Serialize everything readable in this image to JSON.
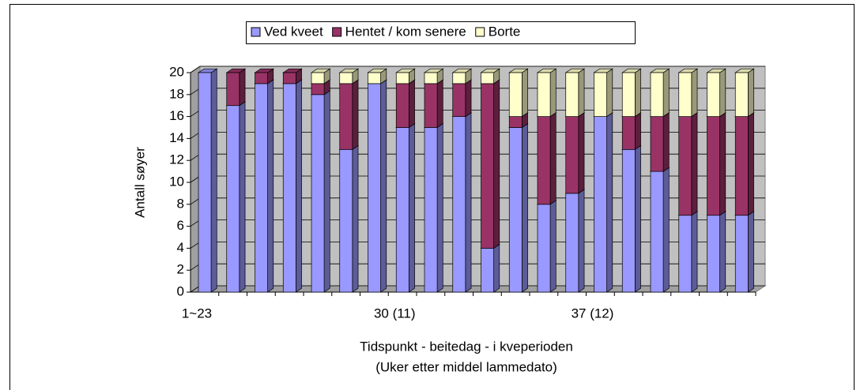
{
  "chart_data": {
    "type": "stacked_bar_3d",
    "categories": [
      "1~23",
      null,
      null,
      null,
      null,
      null,
      null,
      "30 (11)",
      null,
      null,
      null,
      null,
      null,
      null,
      "37 (12)",
      null,
      null,
      null,
      null,
      null
    ],
    "series": [
      {
        "name": "Ved kveet",
        "color": "#9999ff",
        "values": [
          20,
          17,
          19,
          19,
          18,
          13,
          19,
          15,
          15,
          16,
          4,
          15,
          8,
          9,
          16,
          13,
          11,
          7,
          7,
          7
        ]
      },
      {
        "name": "Hentet / kom senere",
        "color": "#993366",
        "values": [
          0,
          3,
          1,
          1,
          1,
          6,
          0,
          4,
          4,
          3,
          15,
          1,
          8,
          7,
          0,
          3,
          5,
          9,
          9,
          9
        ]
      },
      {
        "name": "Borte",
        "color": "#ffffcc",
        "values": [
          0,
          0,
          0,
          0,
          1,
          1,
          1,
          1,
          1,
          1,
          1,
          4,
          4,
          4,
          4,
          4,
          4,
          4,
          4,
          4
        ]
      }
    ],
    "ylabel": "Antall søyer",
    "xlabel": [
      "Tidspunkt - beitedag - i kveperioden",
      "(Uker etter middel lammedato)"
    ],
    "ylim": [
      0,
      20
    ],
    "yticks": [
      0,
      2,
      4,
      6,
      8,
      10,
      12,
      14,
      16,
      18,
      20
    ],
    "grid": true,
    "legend": "top"
  }
}
